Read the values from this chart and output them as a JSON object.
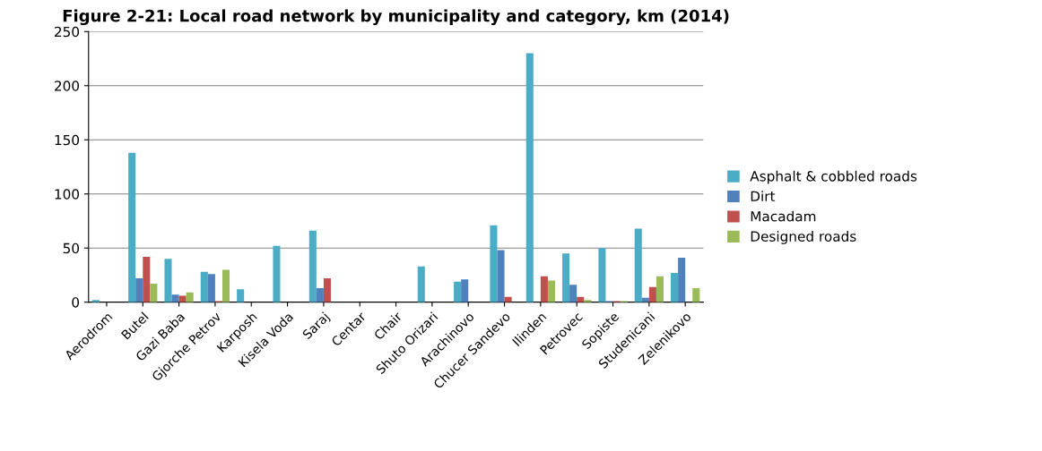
{
  "chart_data": {
    "type": "bar",
    "title": "Figure 2-21: Local road network by municipality and category, km (2014)",
    "categories": [
      "Aerodrom",
      "Butel",
      "Gazi Baba",
      "Gjorche Petrov",
      "Karposh",
      "Kisela Voda",
      "Saraj",
      "Centar",
      "Chair",
      "Shuto Orizari",
      "Arachinovo",
      "Chucer Sandevo",
      "Ilinden",
      "Petrovec",
      "Sopiste",
      "Studenicani",
      "Zelenikovo"
    ],
    "series": [
      {
        "name": "Asphalt & cobbled roads",
        "color": "#4bacc6",
        "values": [
          2,
          138,
          40,
          28,
          12,
          52,
          66,
          0,
          0,
          33,
          19,
          71,
          230,
          45,
          50,
          68,
          27
        ]
      },
      {
        "name": "Dirt",
        "color": "#4f81bd",
        "values": [
          0,
          22,
          7,
          26,
          0,
          0,
          13,
          0,
          0,
          0,
          21,
          48,
          0,
          16,
          1,
          4,
          41
        ]
      },
      {
        "name": "Macadam",
        "color": "#c0504d",
        "values": [
          0,
          42,
          6,
          1,
          0,
          0,
          22,
          0,
          0,
          0,
          0,
          5,
          24,
          5,
          1,
          14,
          0
        ]
      },
      {
        "name": "Designed roads",
        "color": "#9bbb59",
        "values": [
          0,
          17,
          9,
          30,
          0,
          0,
          0,
          0,
          0,
          0,
          0,
          0,
          20,
          2,
          1,
          24,
          13
        ]
      }
    ],
    "ylim": [
      0,
      250
    ],
    "yticks": [
      0,
      50,
      100,
      150,
      200,
      250
    ],
    "grid": "y",
    "legend": "right"
  }
}
